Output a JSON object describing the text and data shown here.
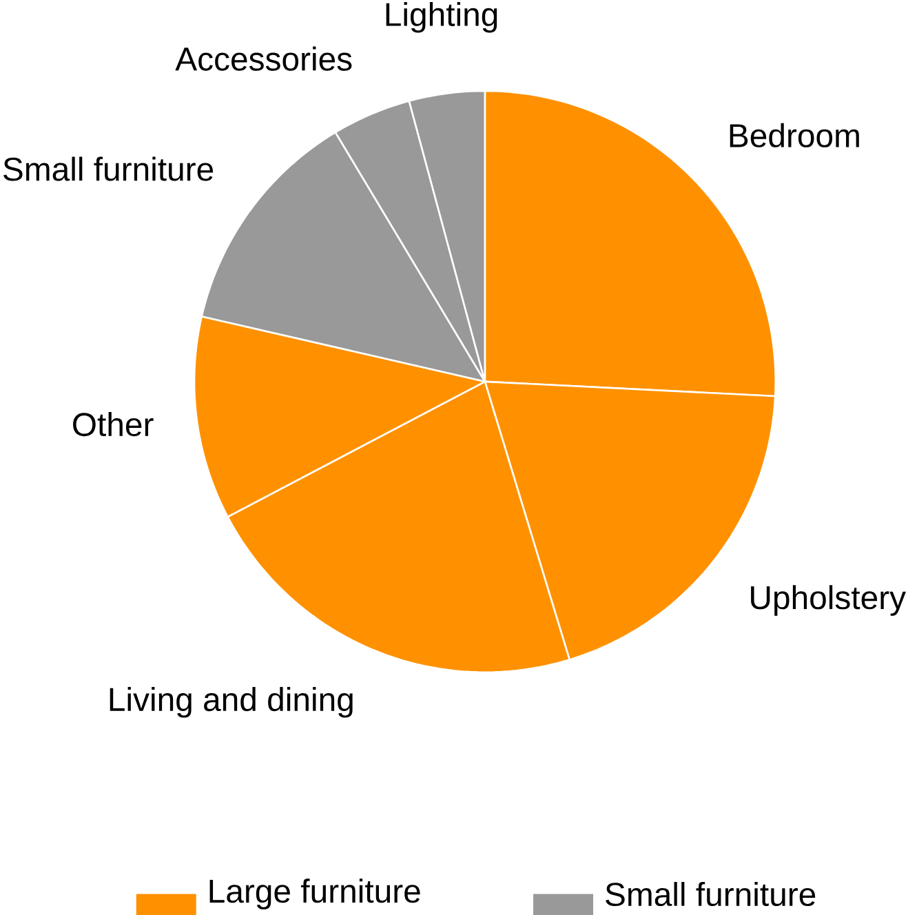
{
  "chart_data": {
    "type": "pie",
    "categories": [
      "Bedroom",
      "Upholstery",
      "Living and dining",
      "Other",
      "Small furniture",
      "Accessories",
      "Lighting"
    ],
    "colors": [
      "#ff9100",
      "#ff9100",
      "#ff9100",
      "#ff9100",
      "#999999",
      "#999999",
      "#999999"
    ],
    "values": [
      25.8,
      19.5,
      22.0,
      11.3,
      12.8,
      4.4,
      4.2
    ],
    "annotations": [
      "Large furniture",
      "Small furniture"
    ]
  }
}
